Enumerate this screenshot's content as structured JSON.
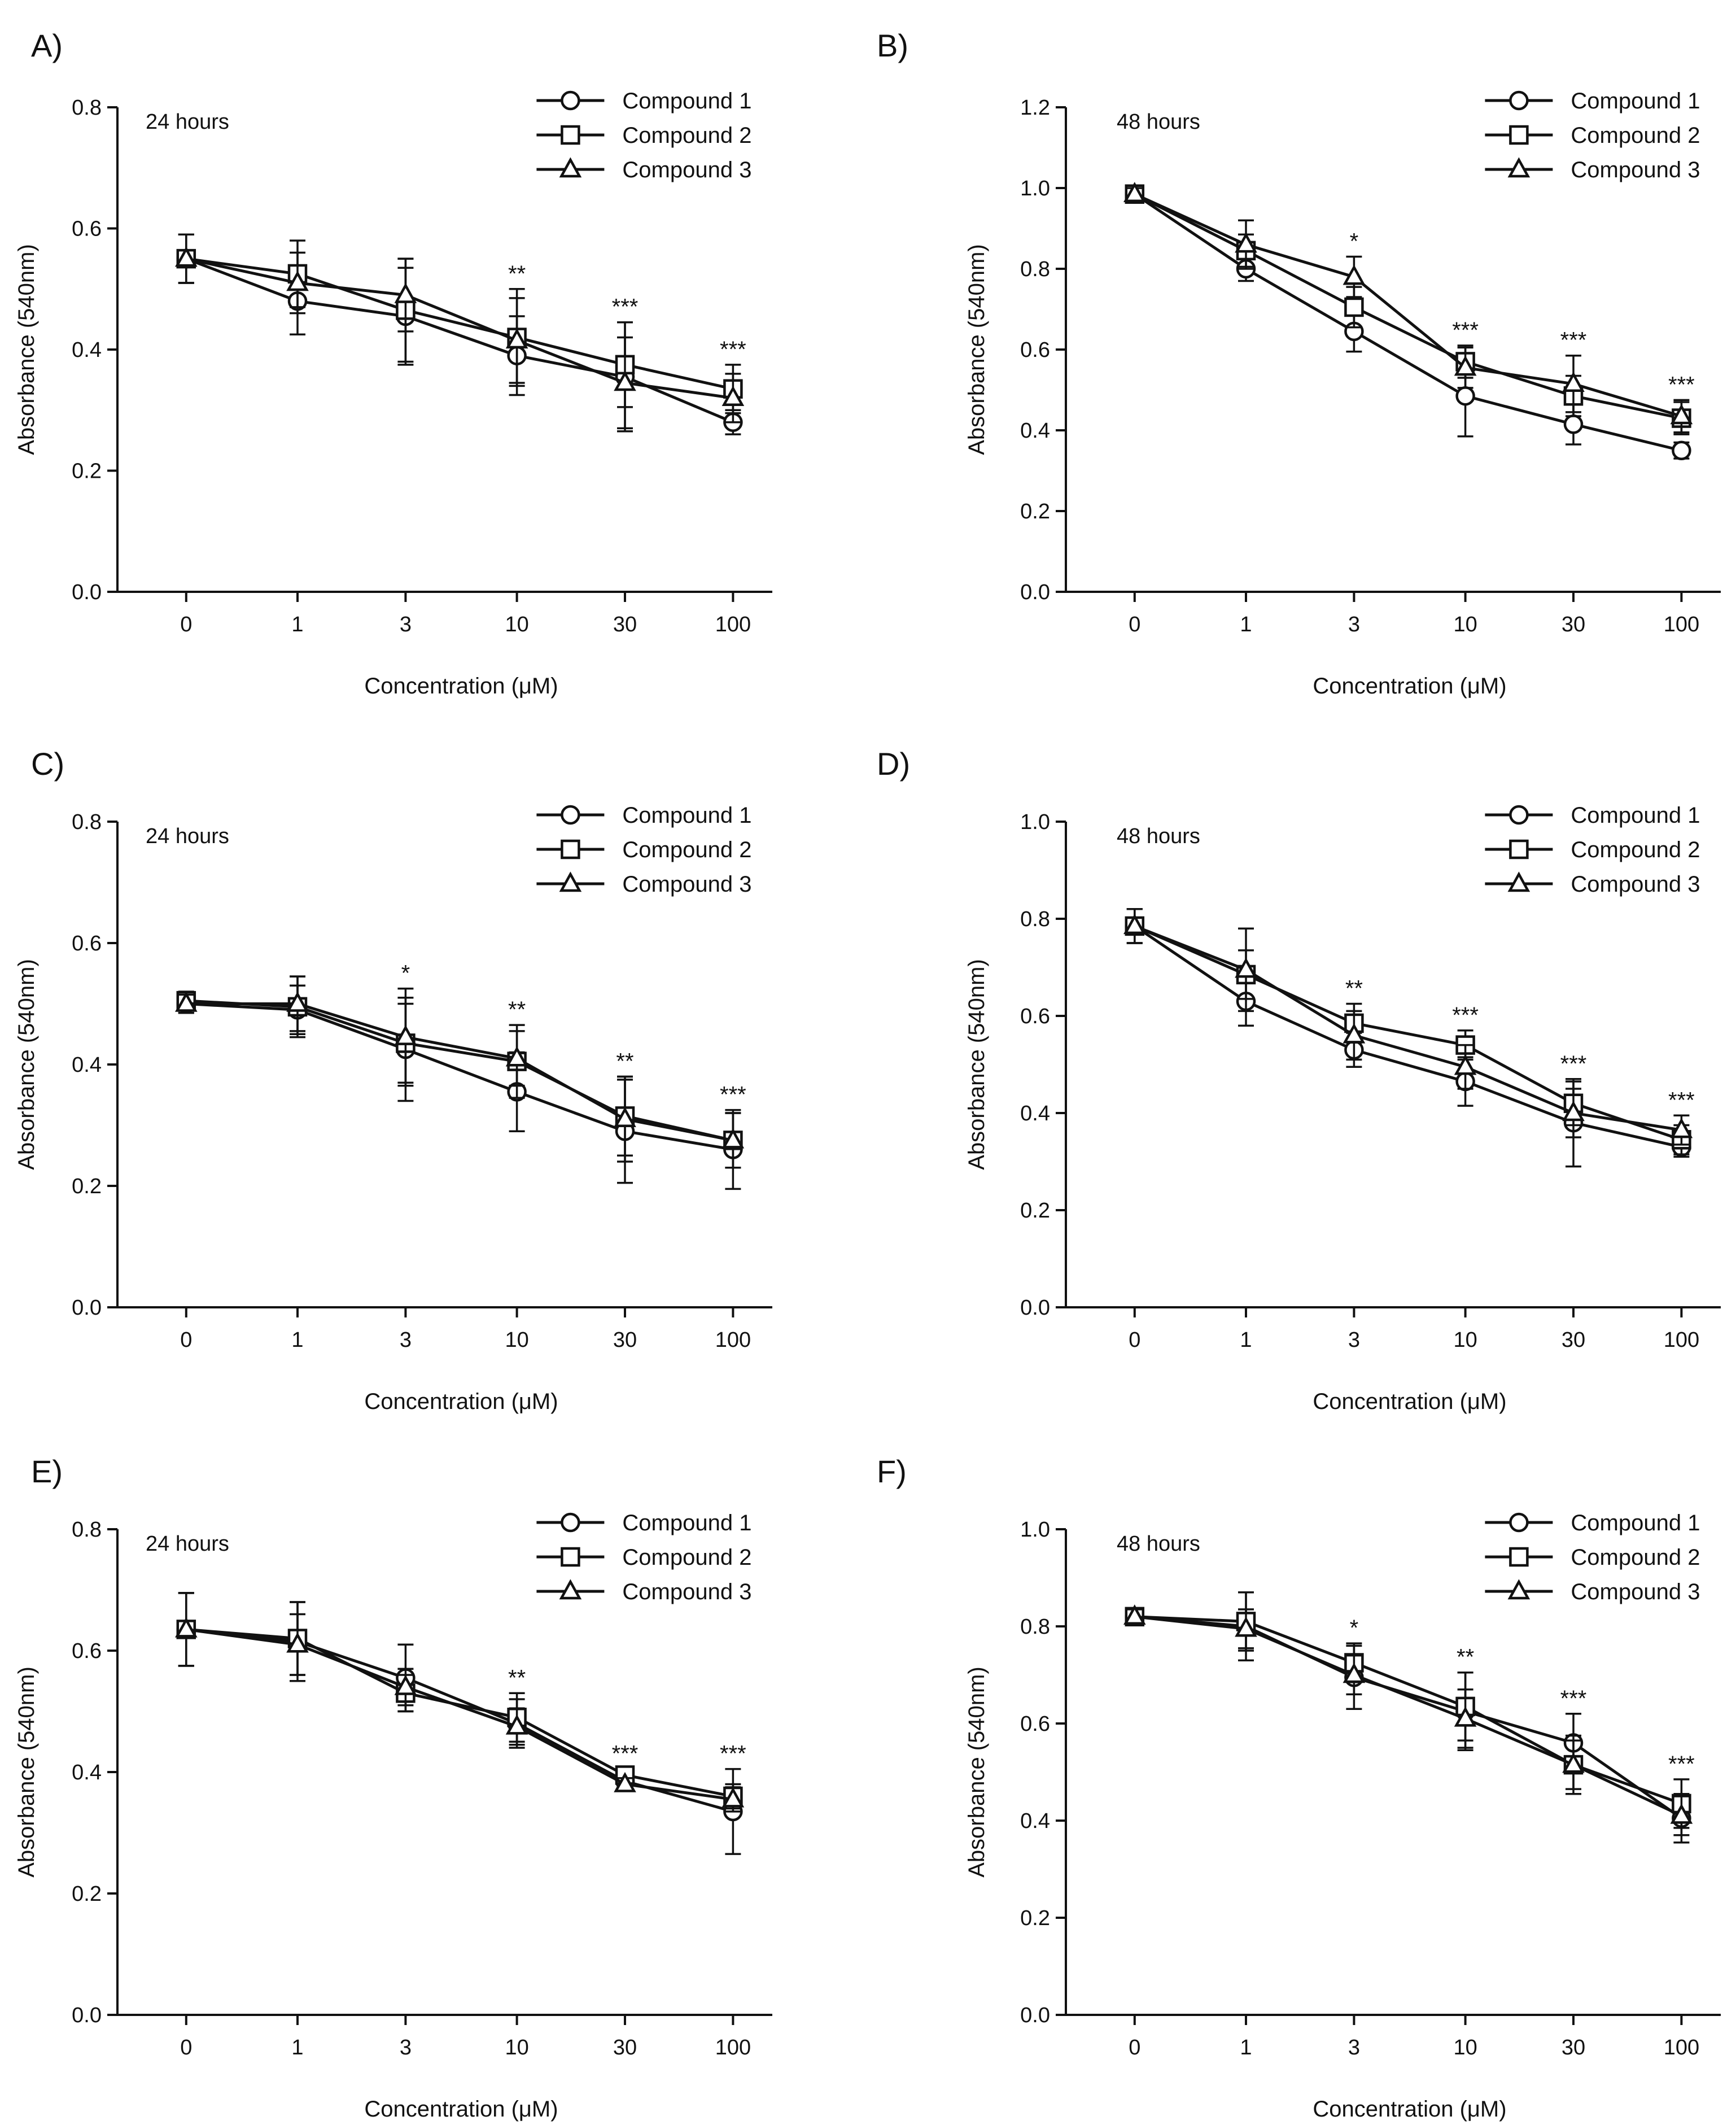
{
  "chart_data": [
    {
      "panel_label": "A)",
      "type": "line",
      "time_label": "24 hours",
      "xlabel": "Concentration (μM)",
      "ylabel": "Absorbance  (540nm)",
      "categories": [
        "0",
        "1",
        "3",
        "10",
        "30",
        "100"
      ],
      "ylim": [
        0,
        0.8
      ],
      "yticks": [
        "0.0",
        "0.2",
        "0.4",
        "0.6",
        "0.8"
      ],
      "legend": "top-right",
      "grid": false,
      "significance": [
        "",
        "",
        "",
        "**",
        "***",
        "***"
      ],
      "series": [
        {
          "name": "Compound 1",
          "marker": "circle",
          "values": [
            0.55,
            0.48,
            0.455,
            0.39,
            0.355,
            0.28
          ],
          "errors": [
            0.04,
            0.055,
            0.08,
            0.065,
            0.09,
            0.02
          ]
        },
        {
          "name": "Compound 2",
          "marker": "square",
          "values": [
            0.55,
            0.525,
            0.465,
            0.42,
            0.375,
            0.335
          ],
          "errors": [
            0.04,
            0.055,
            0.085,
            0.08,
            0.07,
            0.04
          ]
        },
        {
          "name": "Compound 3",
          "marker": "triangle",
          "values": [
            0.55,
            0.51,
            0.49,
            0.415,
            0.345,
            0.32
          ],
          "errors": [
            0.04,
            0.05,
            0.06,
            0.07,
            0.075,
            0.04
          ]
        }
      ]
    },
    {
      "panel_label": "B)",
      "type": "line",
      "time_label": "48 hours",
      "xlabel": "Concentration (μM)",
      "ylabel": "Absorbance  (540nm)",
      "categories": [
        "0",
        "1",
        "3",
        "10",
        "30",
        "100"
      ],
      "ylim": [
        0,
        1.2
      ],
      "yticks": [
        "0.0",
        "0.2",
        "0.4",
        "0.6",
        "0.8",
        "1.0",
        "1.2"
      ],
      "legend": "top-right",
      "grid": false,
      "significance": [
        "",
        "",
        "*",
        "***",
        "***",
        "***"
      ],
      "series": [
        {
          "name": "Compound 1",
          "marker": "circle",
          "values": [
            0.985,
            0.8,
            0.645,
            0.485,
            0.415,
            0.35
          ],
          "errors": [
            0.015,
            0.03,
            0.05,
            0.1,
            0.05,
            0.02
          ]
        },
        {
          "name": "Compound 2",
          "marker": "square",
          "values": [
            0.985,
            0.845,
            0.705,
            0.57,
            0.485,
            0.43
          ],
          "errors": [
            0.015,
            0.04,
            0.05,
            0.04,
            0.05,
            0.04
          ]
        },
        {
          "name": "Compound 3",
          "marker": "triangle",
          "values": [
            0.985,
            0.86,
            0.78,
            0.555,
            0.515,
            0.435
          ],
          "errors": [
            0.015,
            0.06,
            0.05,
            0.05,
            0.07,
            0.04
          ]
        }
      ]
    },
    {
      "panel_label": "C)",
      "type": "line",
      "time_label": "24 hours",
      "xlabel": "Concentration (μM)",
      "ylabel": "Absorbance  (540nm)",
      "categories": [
        "0",
        "1",
        "3",
        "10",
        "30",
        "100"
      ],
      "ylim": [
        0,
        0.8
      ],
      "yticks": [
        "0.0",
        "0.2",
        "0.4",
        "0.6",
        "0.8"
      ],
      "legend": "top-right",
      "grid": false,
      "significance": [
        "",
        "",
        "*",
        "**",
        "**",
        "***"
      ],
      "series": [
        {
          "name": "Compound 1",
          "marker": "circle",
          "values": [
            0.5,
            0.49,
            0.425,
            0.355,
            0.29,
            0.26
          ],
          "errors": [
            0.015,
            0.04,
            0.085,
            0.065,
            0.085,
            0.065
          ]
        },
        {
          "name": "Compound 2",
          "marker": "square",
          "values": [
            0.505,
            0.495,
            0.435,
            0.405,
            0.315,
            0.275
          ],
          "errors": [
            0.015,
            0.05,
            0.065,
            0.06,
            0.065,
            0.045
          ]
        },
        {
          "name": "Compound 3",
          "marker": "triangle",
          "values": [
            0.5,
            0.5,
            0.445,
            0.41,
            0.31,
            0.275
          ],
          "errors": [
            0.015,
            0.045,
            0.08,
            0.045,
            0.07,
            0.045
          ]
        }
      ]
    },
    {
      "panel_label": "D)",
      "type": "line",
      "time_label": "48 hours",
      "xlabel": "Concentration (μM)",
      "ylabel": "Absorbance  (540nm)",
      "categories": [
        "0",
        "1",
        "3",
        "10",
        "30",
        "100"
      ],
      "ylim": [
        0,
        1.0
      ],
      "yticks": [
        "0.0",
        "0.2",
        "0.4",
        "0.6",
        "0.8",
        "1.0"
      ],
      "legend": "top-right",
      "grid": false,
      "significance": [
        "",
        "",
        "**",
        "***",
        "***",
        "***"
      ],
      "series": [
        {
          "name": "Compound 1",
          "marker": "circle",
          "values": [
            0.785,
            0.63,
            0.53,
            0.465,
            0.38,
            0.33
          ],
          "errors": [
            0.035,
            0.05,
            0.035,
            0.05,
            0.09,
            0.02
          ]
        },
        {
          "name": "Compound 2",
          "marker": "square",
          "values": [
            0.785,
            0.685,
            0.585,
            0.54,
            0.42,
            0.345
          ],
          "errors": [
            0.035,
            0.05,
            0.04,
            0.03,
            0.045,
            0.03
          ]
        },
        {
          "name": "Compound 3",
          "marker": "triangle",
          "values": [
            0.785,
            0.695,
            0.56,
            0.495,
            0.4,
            0.365
          ],
          "errors": [
            0.035,
            0.085,
            0.05,
            0.045,
            0.05,
            0.03
          ]
        }
      ]
    },
    {
      "panel_label": "E)",
      "type": "line",
      "time_label": "24 hours",
      "xlabel": "Concentration (μM)",
      "ylabel": "Absorbance  (540nm)",
      "categories": [
        "0",
        "1",
        "3",
        "10",
        "30",
        "100"
      ],
      "ylim": [
        0,
        0.8
      ],
      "yticks": [
        "0.0",
        "0.2",
        "0.4",
        "0.6",
        "0.8"
      ],
      "legend": "top-right",
      "grid": false,
      "significance": [
        "",
        "",
        "",
        "**",
        "***",
        "***"
      ],
      "series": [
        {
          "name": "Compound 1",
          "marker": "circle",
          "values": [
            0.635,
            0.615,
            0.555,
            0.48,
            0.385,
            0.335
          ],
          "errors": [
            0.06,
            0.065,
            0.055,
            0.04,
            0.01,
            0.07
          ]
        },
        {
          "name": "Compound 2",
          "marker": "square",
          "values": [
            0.635,
            0.62,
            0.53,
            0.49,
            0.395,
            0.36
          ],
          "errors": [
            0.06,
            0.06,
            0.03,
            0.04,
            0.01,
            0.02
          ]
        },
        {
          "name": "Compound 3",
          "marker": "triangle",
          "values": [
            0.635,
            0.61,
            0.54,
            0.475,
            0.38,
            0.355
          ],
          "errors": [
            0.06,
            0.05,
            0.03,
            0.03,
            0.01,
            0.02
          ]
        }
      ]
    },
    {
      "panel_label": "F)",
      "type": "line",
      "time_label": "48 hours",
      "xlabel": "Concentration (μM)",
      "ylabel": "Absorbance  (540nm)",
      "categories": [
        "0",
        "1",
        "3",
        "10",
        "30",
        "100"
      ],
      "ylim": [
        0,
        1.0
      ],
      "yticks": [
        "0.0",
        "0.2",
        "0.4",
        "0.6",
        "0.8",
        "1.0"
      ],
      "legend": "top-right",
      "grid": false,
      "significance": [
        "",
        "",
        "*",
        "**",
        "***",
        "***"
      ],
      "series": [
        {
          "name": "Compound 1",
          "marker": "circle",
          "values": [
            0.82,
            0.8,
            0.695,
            0.625,
            0.56,
            0.405
          ],
          "errors": [
            0.015,
            0.07,
            0.065,
            0.08,
            0.06,
            0.05
          ]
        },
        {
          "name": "Compound 2",
          "marker": "square",
          "values": [
            0.82,
            0.81,
            0.725,
            0.635,
            0.515,
            0.435
          ],
          "errors": [
            0.015,
            0.06,
            0.04,
            0.07,
            0.06,
            0.05
          ]
        },
        {
          "name": "Compound 3",
          "marker": "triangle",
          "values": [
            0.82,
            0.795,
            0.7,
            0.61,
            0.515,
            0.41
          ],
          "errors": [
            0.015,
            0.04,
            0.04,
            0.06,
            0.05,
            0.04
          ]
        }
      ]
    }
  ]
}
